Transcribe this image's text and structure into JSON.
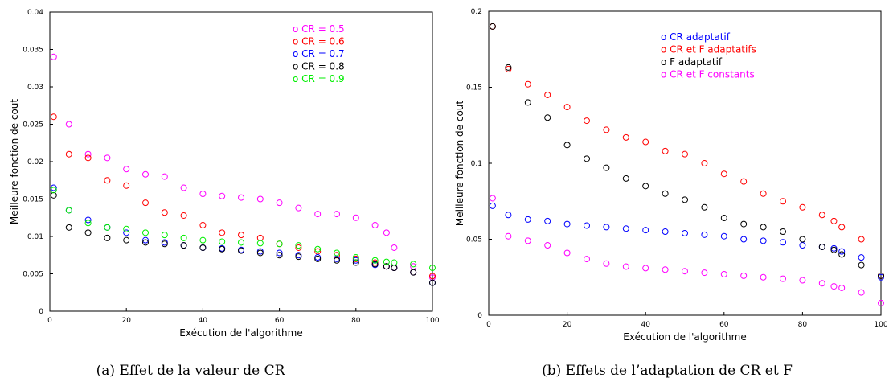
{
  "chart_data": [
    {
      "type": "scatter",
      "caption": "(a) Effet de la valeur de CR",
      "xlabel": "Exécution de l'algorithme",
      "ylabel": "Meilleure fonction de cout",
      "xlim": [
        0,
        100
      ],
      "ylim": [
        0,
        0.04
      ],
      "xticks": [
        "0",
        "20",
        "40",
        "60",
        "80",
        "100"
      ],
      "yticks": [
        "0",
        "0.005",
        "0.01",
        "0.015",
        "0.02",
        "0.025",
        "0.03",
        "0.035",
        "0.04"
      ],
      "legend_position": "top-right",
      "x": [
        1,
        5,
        10,
        15,
        20,
        25,
        30,
        35,
        40,
        45,
        50,
        55,
        60,
        65,
        70,
        75,
        80,
        85,
        88,
        90,
        95,
        100
      ],
      "series": [
        {
          "name": "CR = 0.5",
          "color": "#ff00ff",
          "values": [
            0.034,
            0.025,
            0.021,
            0.0205,
            0.019,
            0.0183,
            0.018,
            0.0165,
            0.0157,
            0.0154,
            0.0152,
            0.015,
            0.0145,
            0.0138,
            0.013,
            0.013,
            0.0125,
            0.0115,
            0.0105,
            0.0085,
            0.006,
            0.0045
          ]
        },
        {
          "name": "CR = 0.6",
          "color": "#ff0000",
          "values": [
            0.026,
            0.021,
            0.0205,
            0.0175,
            0.0168,
            0.0145,
            0.0132,
            0.0128,
            0.0115,
            0.0105,
            0.0102,
            0.0098,
            0.009,
            0.0085,
            0.008,
            0.0075,
            0.007,
            0.0065,
            0.006,
            0.0058,
            0.0052,
            0.0047
          ]
        },
        {
          "name": "CR = 0.7",
          "color": "#0000ff",
          "values": [
            0.0165,
            0.0135,
            0.0122,
            0.0112,
            0.0105,
            0.0095,
            0.0092,
            0.0088,
            0.0085,
            0.0084,
            0.0082,
            0.008,
            0.0078,
            0.0075,
            0.0072,
            0.007,
            0.0068,
            0.0062,
            0.006,
            0.0058,
            0.0052,
            0.0038
          ]
        },
        {
          "name": "CR = 0.8",
          "color": "#000000",
          "values": [
            0.0155,
            0.0112,
            0.0105,
            0.0098,
            0.0095,
            0.0092,
            0.009,
            0.0088,
            0.0085,
            0.0083,
            0.0081,
            0.0078,
            0.0075,
            0.0073,
            0.007,
            0.0068,
            0.0065,
            0.0063,
            0.006,
            0.0058,
            0.0052,
            0.0038
          ]
        },
        {
          "name": "CR = 0.9",
          "color": "#00ee00",
          "values": [
            0.0162,
            0.0135,
            0.0118,
            0.0112,
            0.011,
            0.0105,
            0.0102,
            0.0098,
            0.0095,
            0.0093,
            0.0092,
            0.0091,
            0.009,
            0.0088,
            0.0083,
            0.0078,
            0.0072,
            0.0068,
            0.0066,
            0.0065,
            0.0063,
            0.0058
          ]
        }
      ]
    },
    {
      "type": "scatter",
      "caption": "(b) Effets de l’adaptation de CR et F",
      "xlabel": "Exécution de l'algorithme",
      "ylabel": "Meilleure fonction de cout",
      "xlim": [
        0,
        100
      ],
      "ylim": [
        0,
        0.2
      ],
      "xticks": [
        "0",
        "20",
        "40",
        "60",
        "80",
        "100"
      ],
      "yticks": [
        "0",
        "0.05",
        "0.1",
        "0.15",
        "0.2"
      ],
      "legend_position": "top-right",
      "x": [
        1,
        5,
        10,
        15,
        20,
        25,
        30,
        35,
        40,
        45,
        50,
        55,
        60,
        65,
        70,
        75,
        80,
        85,
        88,
        90,
        95,
        100
      ],
      "series": [
        {
          "name": "CR adaptatif",
          "color": "#0000ff",
          "values": [
            0.072,
            0.066,
            0.063,
            0.062,
            0.06,
            0.059,
            0.058,
            0.057,
            0.056,
            0.055,
            0.054,
            0.053,
            0.052,
            0.05,
            0.049,
            0.048,
            0.046,
            0.045,
            0.044,
            0.042,
            0.038,
            0.025
          ]
        },
        {
          "name": "CR et F adaptatifs",
          "color": "#ff0000",
          "values": [
            0.19,
            0.162,
            0.152,
            0.145,
            0.137,
            0.128,
            0.122,
            0.117,
            0.114,
            0.108,
            0.106,
            0.1,
            0.093,
            0.088,
            0.08,
            0.075,
            0.071,
            0.066,
            0.062,
            0.058,
            0.05,
            0.026
          ]
        },
        {
          "name": "F adaptatif",
          "color": "#000000",
          "values": [
            0.19,
            0.163,
            0.14,
            0.13,
            0.112,
            0.103,
            0.097,
            0.09,
            0.085,
            0.08,
            0.076,
            0.071,
            0.064,
            0.06,
            0.058,
            0.055,
            0.05,
            0.045,
            0.043,
            0.04,
            0.033,
            0.026
          ]
        },
        {
          "name": "CR et F constants",
          "color": "#ff00ff",
          "values": [
            0.077,
            0.052,
            0.049,
            0.046,
            0.041,
            0.037,
            0.034,
            0.032,
            0.031,
            0.03,
            0.029,
            0.028,
            0.027,
            0.026,
            0.025,
            0.024,
            0.023,
            0.021,
            0.019,
            0.018,
            0.015,
            0.008
          ]
        }
      ]
    }
  ]
}
